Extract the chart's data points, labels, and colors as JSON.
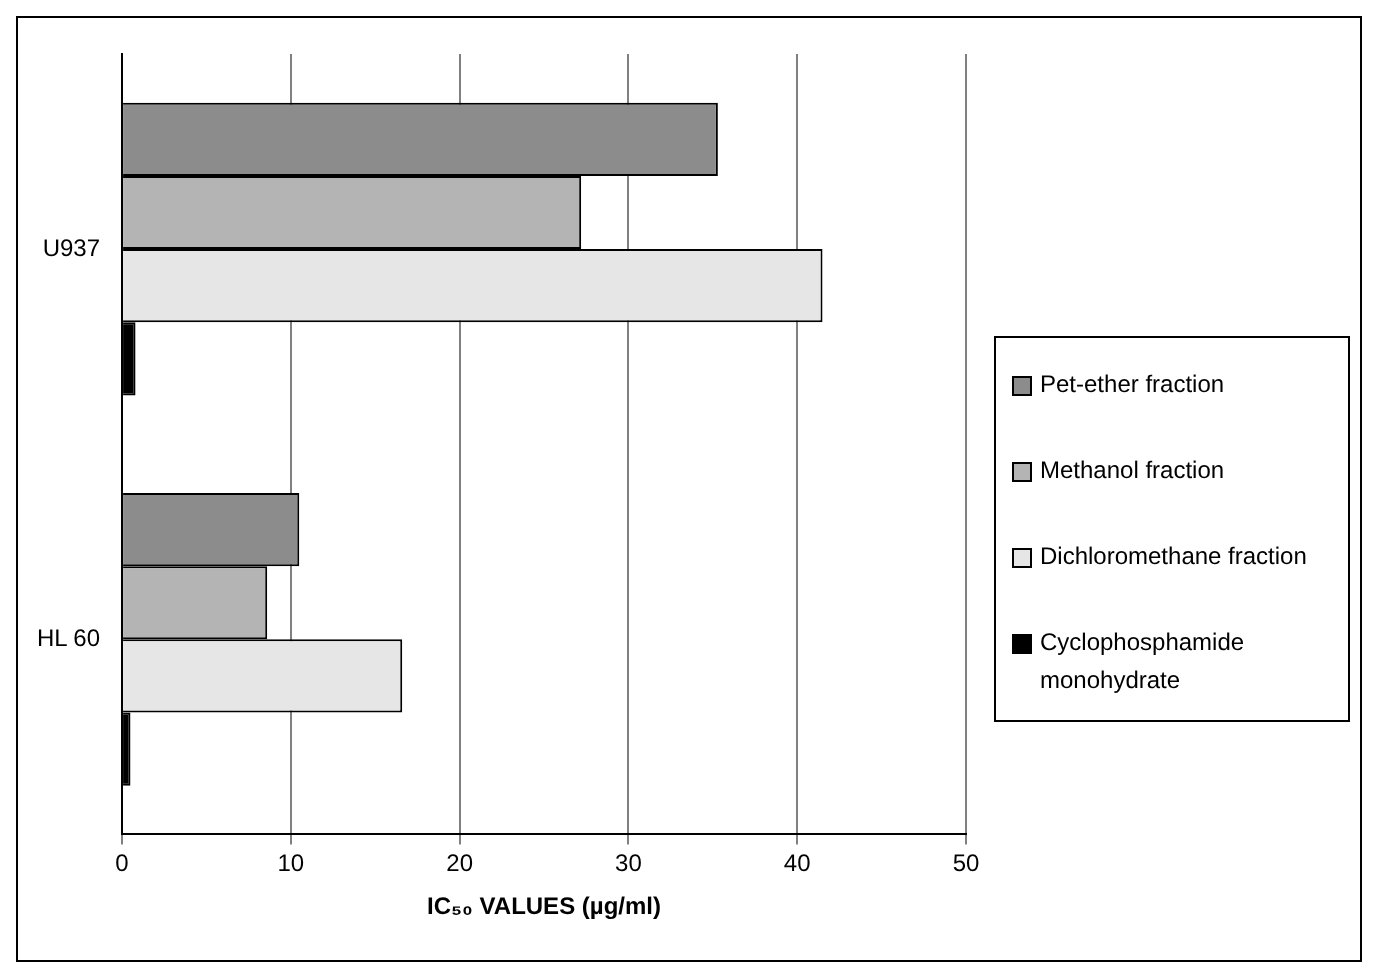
{
  "chart_data": {
    "type": "bar",
    "orientation": "horizontal",
    "xlabel": "IC₅₀ VALUES (µg/ml)",
    "categories": [
      "U937",
      "HL 60"
    ],
    "series": [
      {
        "name": "Pet-ether fraction",
        "color": "#8c8c8c",
        "values": [
          35.3,
          10.5
        ]
      },
      {
        "name": "Methanol fraction",
        "color": "#b4b4b4",
        "values": [
          27.2,
          8.6
        ]
      },
      {
        "name": "Dichloromethane fraction",
        "color": "#e6e6e6",
        "values": [
          41.5,
          16.6
        ]
      },
      {
        "name": "Cyclophosphamide monohydrate",
        "color": "#000000",
        "values": [
          0.8,
          0.5
        ]
      }
    ],
    "xlim": [
      0,
      50
    ],
    "xticks": [
      0,
      10,
      20,
      30,
      40,
      50
    ],
    "grid": "x",
    "legend": "right"
  }
}
